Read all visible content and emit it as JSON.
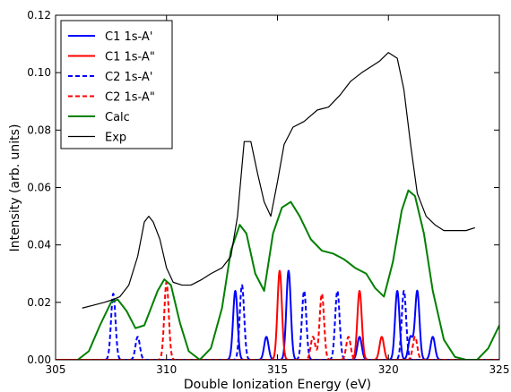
{
  "chart_data": {
    "type": "line",
    "xlabel": "Double Ionization Energy (eV)",
    "ylabel": "Intensity (arb. units)",
    "xlim": [
      305,
      325
    ],
    "ylim": [
      0,
      0.12
    ],
    "xticks": [
      305,
      310,
      315,
      320,
      325
    ],
    "yticks": [
      0.0,
      0.02,
      0.04,
      0.06,
      0.08,
      0.1,
      0.12
    ],
    "xtick_labels": [
      "305",
      "310",
      "315",
      "320",
      "325"
    ],
    "ytick_labels": [
      "0.00",
      "0.02",
      "0.04",
      "0.06",
      "0.08",
      "0.10",
      "0.12"
    ],
    "grid": false,
    "legend_position": "top-left",
    "legend": [
      {
        "label": "C1 1s-A'",
        "color": "#0000ff",
        "dash": "solid"
      },
      {
        "label": "C1 1s-A\"",
        "color": "#ff0000",
        "dash": "solid"
      },
      {
        "label": "C2 1s-A'",
        "color": "#0000ff",
        "dash": "dashed"
      },
      {
        "label": "C2 1s-A\"",
        "color": "#ff0000",
        "dash": "dashed"
      },
      {
        "label": "Calc",
        "color": "#008000",
        "dash": "solid"
      },
      {
        "label": "Exp",
        "color": "#000000",
        "dash": "solid"
      }
    ],
    "stick_sigma": 0.1,
    "series": [
      {
        "name": "C1 1s-A'",
        "color": "#0000ff",
        "dash": "solid",
        "peaks": [
          [
            313.1,
            0.024
          ],
          [
            314.5,
            0.008
          ],
          [
            315.5,
            0.031
          ],
          [
            318.7,
            0.008
          ],
          [
            320.4,
            0.024
          ],
          [
            321.0,
            0.008
          ],
          [
            321.3,
            0.024
          ],
          [
            322.0,
            0.008
          ]
        ]
      },
      {
        "name": "C1 1s-A\"",
        "color": "#ff0000",
        "dash": "solid",
        "peaks": [
          [
            315.1,
            0.031
          ],
          [
            318.7,
            0.024
          ],
          [
            319.7,
            0.008
          ]
        ]
      },
      {
        "name": "C2 1s-A'",
        "color": "#0000ff",
        "dash": "dashed",
        "peaks": [
          [
            307.6,
            0.023
          ],
          [
            308.7,
            0.008
          ],
          [
            313.4,
            0.026
          ],
          [
            316.2,
            0.024
          ],
          [
            317.7,
            0.024
          ],
          [
            320.7,
            0.024
          ]
        ]
      },
      {
        "name": "C2 1s-A\"",
        "color": "#ff0000",
        "dash": "dashed",
        "peaks": [
          [
            310.0,
            0.027
          ],
          [
            316.6,
            0.008
          ],
          [
            317.0,
            0.023
          ],
          [
            318.2,
            0.008
          ],
          [
            321.2,
            0.008
          ]
        ]
      },
      {
        "name": "Calc",
        "color": "#008000",
        "dash": "solid",
        "x": [
          306.0,
          306.5,
          307.0,
          307.5,
          307.8,
          308.2,
          308.6,
          309.0,
          309.3,
          309.6,
          309.9,
          310.2,
          310.6,
          311.0,
          311.5,
          312.0,
          312.5,
          312.9,
          313.3,
          313.6,
          314.0,
          314.4,
          314.8,
          315.2,
          315.6,
          316.0,
          316.5,
          317.0,
          317.5,
          318.0,
          318.5,
          319.0,
          319.4,
          319.8,
          320.2,
          320.6,
          320.9,
          321.2,
          321.6,
          322.0,
          322.5,
          323.0,
          323.5,
          324.0,
          324.5,
          325.0
        ],
        "y": [
          0.0,
          0.003,
          0.012,
          0.02,
          0.021,
          0.017,
          0.011,
          0.012,
          0.018,
          0.024,
          0.028,
          0.026,
          0.013,
          0.003,
          0.0,
          0.004,
          0.018,
          0.038,
          0.047,
          0.044,
          0.03,
          0.024,
          0.044,
          0.053,
          0.055,
          0.05,
          0.042,
          0.038,
          0.037,
          0.035,
          0.032,
          0.03,
          0.025,
          0.022,
          0.034,
          0.052,
          0.059,
          0.057,
          0.044,
          0.024,
          0.007,
          0.001,
          0.0,
          0.0,
          0.004,
          0.012
        ]
      },
      {
        "name": "Exp",
        "color": "#000000",
        "dash": "solid",
        "x": [
          306.2,
          306.7,
          307.2,
          307.6,
          307.9,
          308.3,
          308.7,
          309.0,
          309.2,
          309.4,
          309.7,
          310.0,
          310.3,
          310.7,
          311.1,
          311.6,
          312.0,
          312.5,
          312.9,
          313.2,
          313.5,
          313.8,
          314.1,
          314.4,
          314.7,
          315.0,
          315.3,
          315.7,
          316.2,
          316.8,
          317.3,
          317.8,
          318.3,
          318.8,
          319.2,
          319.6,
          320.0,
          320.4,
          320.7,
          321.0,
          321.3,
          321.7,
          322.1,
          322.5,
          323.0,
          323.5,
          323.9
        ],
        "y": [
          0.018,
          0.019,
          0.02,
          0.021,
          0.022,
          0.026,
          0.036,
          0.048,
          0.05,
          0.048,
          0.042,
          0.032,
          0.027,
          0.026,
          0.026,
          0.028,
          0.03,
          0.032,
          0.036,
          0.05,
          0.076,
          0.076,
          0.065,
          0.055,
          0.05,
          0.062,
          0.075,
          0.081,
          0.083,
          0.087,
          0.088,
          0.092,
          0.097,
          0.1,
          0.102,
          0.104,
          0.107,
          0.105,
          0.094,
          0.075,
          0.058,
          0.05,
          0.047,
          0.045,
          0.045,
          0.045,
          0.046
        ]
      }
    ]
  }
}
